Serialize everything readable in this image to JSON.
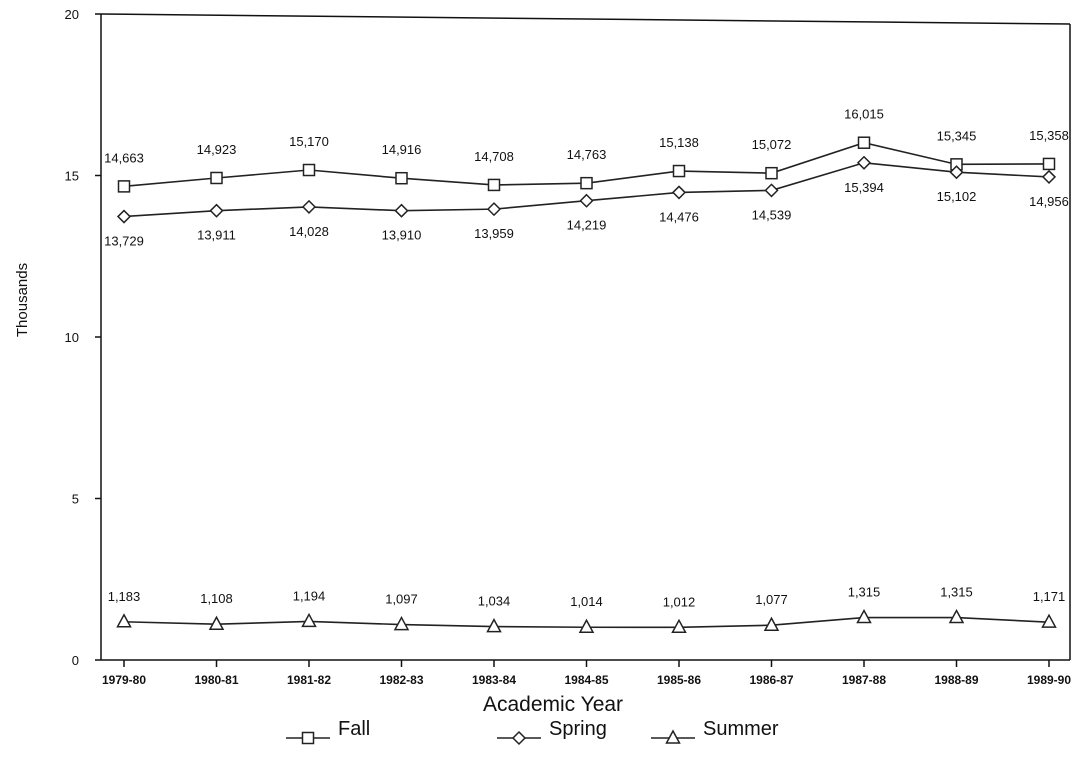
{
  "chart_data": {
    "type": "line",
    "xlabel": "Academic Year",
    "ylabel": "Thousands",
    "ylim": [
      0,
      20
    ],
    "yticks": [
      "0",
      "5",
      "10",
      "15",
      "20"
    ],
    "categories": [
      "1979-80",
      "1980-81",
      "1981-82",
      "1982-83",
      "1983-84",
      "1984-85",
      "1985-86",
      "1986-87",
      "1987-88",
      "1988-89",
      "1989-90"
    ],
    "grid": false,
    "legend_position": "bottom",
    "series": [
      {
        "name": "Fall",
        "marker": "square",
        "values": [
          14663,
          14923,
          15170,
          14916,
          14708,
          14763,
          15138,
          15072,
          16015,
          15345,
          15358
        ],
        "labels": [
          "14,663",
          "14,923",
          "15,170",
          "14,916",
          "14,708",
          "14,763",
          "15,138",
          "15,072",
          "16,015",
          "15,345",
          "15,358"
        ]
      },
      {
        "name": "Spring",
        "marker": "diamond",
        "values": [
          13729,
          13911,
          14028,
          13910,
          13959,
          14219,
          14476,
          14539,
          15394,
          15102,
          14956
        ],
        "labels": [
          "13,729",
          "13,911",
          "14,028",
          "13,910",
          "13,959",
          "14,219",
          "14,476",
          "14,539",
          "15,394",
          "15,102",
          "14,956"
        ]
      },
      {
        "name": "Summer",
        "marker": "triangle",
        "values": [
          1183,
          1108,
          1194,
          1097,
          1034,
          1014,
          1012,
          1077,
          1315,
          1315,
          1171
        ],
        "labels": [
          "1,183",
          "1,108",
          "1,194",
          "1,097",
          "1,034",
          "1,014",
          "1,012",
          "1,077",
          "1,315",
          "1,315",
          "1,171"
        ]
      }
    ]
  }
}
